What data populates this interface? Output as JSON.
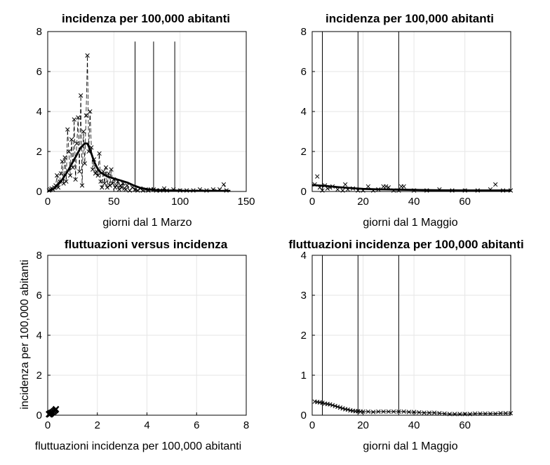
{
  "chart_data": [
    {
      "id": "p1",
      "type": "line",
      "title": "incidenza per 100,000 abitanti",
      "xlabel": "giorni dal 1 Marzo",
      "ylabel": "",
      "xlim": [
        0,
        150
      ],
      "ylim": [
        0,
        8
      ],
      "xticks": [
        0,
        50,
        100,
        150
      ],
      "yticks": [
        0,
        2,
        4,
        6,
        8
      ],
      "grid": true,
      "vlines": [
        66,
        80,
        96
      ],
      "vline_top": 7.5,
      "series": [
        {
          "style": "markers-x-dashed",
          "x": [
            1,
            2,
            3,
            4,
            5,
            6,
            7,
            8,
            9,
            10,
            11,
            12,
            13,
            14,
            15,
            16,
            17,
            18,
            19,
            20,
            21,
            22,
            23,
            24,
            25,
            26,
            27,
            28,
            29,
            30,
            31,
            32,
            33,
            34,
            35,
            36,
            37,
            38,
            39,
            40,
            41,
            42,
            43,
            44,
            45,
            46,
            47,
            48,
            49,
            50,
            51,
            52,
            53,
            54,
            55,
            56,
            57,
            58,
            59,
            60,
            62,
            64,
            66,
            68,
            70,
            72,
            74,
            76,
            78,
            80,
            82,
            85,
            88,
            90,
            95,
            100,
            105,
            110,
            115,
            120,
            125,
            130,
            133,
            135
          ],
          "y": [
            0.05,
            0.1,
            0.15,
            0.1,
            0.2,
            0.3,
            0.8,
            0.2,
            0.5,
            0.9,
            1.5,
            0.4,
            1.7,
            0.5,
            3.1,
            2.0,
            0.8,
            2.6,
            1.2,
            3.6,
            0.6,
            2.4,
            3.7,
            1.0,
            4.8,
            0.3,
            3.0,
            1.4,
            3.8,
            6.8,
            2.0,
            4.0,
            2.2,
            1.1,
            1.6,
            0.9,
            1.0,
            0.8,
            1.9,
            0.5,
            0.2,
            1.0,
            0.4,
            1.2,
            0.2,
            0.9,
            0.3,
            1.1,
            0.4,
            0.6,
            0.2,
            0.3,
            0.5,
            0.1,
            0.3,
            0.2,
            0.4,
            0.15,
            0.1,
            0.3,
            0.05,
            0.2,
            0.1,
            0.05,
            0.15,
            0.05,
            0.1,
            0.05,
            0.1,
            0.1,
            0.05,
            0.05,
            0.15,
            0.05,
            0.1,
            0.05,
            0.05,
            0.05,
            0.1,
            0.05,
            0.1,
            0.1,
            0.35,
            0.05
          ]
        },
        {
          "style": "thick-line",
          "x": [
            0,
            5,
            10,
            15,
            20,
            25,
            28,
            30,
            32,
            35,
            38,
            40,
            45,
            50,
            55,
            60,
            65,
            70,
            75,
            80,
            90,
            100,
            110,
            120,
            130,
            138
          ],
          "y": [
            0,
            0.15,
            0.5,
            1.0,
            1.6,
            2.2,
            2.4,
            2.4,
            2.1,
            1.5,
            1.1,
            0.95,
            0.75,
            0.65,
            0.55,
            0.45,
            0.3,
            0.18,
            0.12,
            0.08,
            0.05,
            0.04,
            0.03,
            0.03,
            0.03,
            0.03
          ]
        }
      ]
    },
    {
      "id": "p2",
      "type": "line",
      "title": "incidenza per 100,000 abitanti",
      "xlabel": "giorni dal 1 Maggio",
      "ylabel": "",
      "xlim": [
        0,
        78
      ],
      "ylim": [
        0,
        8
      ],
      "xticks": [
        0,
        20,
        40,
        60
      ],
      "yticks": [
        0,
        2,
        4,
        6,
        8
      ],
      "grid": true,
      "vlines": [
        4,
        18,
        34
      ],
      "vline_top": 8,
      "series": [
        {
          "style": "markers-x",
          "x": [
            1,
            2,
            3,
            4,
            5,
            6,
            7,
            8,
            10,
            12,
            13,
            14,
            16,
            18,
            20,
            22,
            24,
            26,
            28,
            29,
            30,
            32,
            34,
            35,
            36,
            40,
            45,
            50,
            55,
            60,
            65,
            70,
            72,
            75,
            78
          ],
          "y": [
            0.35,
            0.75,
            0.2,
            0.05,
            0.3,
            0.15,
            0.2,
            0.25,
            0.1,
            0.05,
            0.35,
            0.1,
            0.15,
            0.05,
            0.05,
            0.25,
            0.05,
            0.1,
            0.25,
            0.25,
            0.2,
            0.05,
            0.05,
            0.25,
            0.25,
            0.05,
            0.05,
            0.1,
            0.05,
            0.05,
            0.05,
            0.1,
            0.35,
            0.05,
            0.05
          ]
        },
        {
          "style": "thick-line",
          "x": [
            0,
            5,
            10,
            15,
            20,
            25,
            30,
            35,
            40,
            50,
            60,
            70,
            78
          ],
          "y": [
            0.32,
            0.28,
            0.22,
            0.17,
            0.13,
            0.11,
            0.1,
            0.09,
            0.08,
            0.06,
            0.05,
            0.05,
            0.05
          ]
        }
      ]
    },
    {
      "id": "p3",
      "type": "scatter",
      "title": "fluttuazioni versus incidenza",
      "xlabel": "fluttuazioni incidenza per 100,000 abitanti",
      "ylabel": "incidenza per 100,000 abitanti",
      "xlim": [
        0,
        8
      ],
      "ylim": [
        0,
        8
      ],
      "xticks": [
        0,
        2,
        4,
        6,
        8
      ],
      "yticks": [
        0,
        2,
        4,
        6,
        8
      ],
      "grid": true,
      "vlines": [],
      "series": [
        {
          "style": "markers-x-bold",
          "x": [
            0.05,
            0.1,
            0.15,
            0.2,
            0.25,
            0.3,
            0.33,
            0.12,
            0.08
          ],
          "y": [
            0.05,
            0.1,
            0.12,
            0.15,
            0.2,
            0.25,
            0.3,
            0.08,
            0.04
          ]
        }
      ]
    },
    {
      "id": "p4",
      "type": "line",
      "title": "fluttuazioni incidenza per 100,000 abitanti",
      "xlabel": "giorni dal 1 Maggio",
      "ylabel": "",
      "xlim": [
        0,
        78
      ],
      "ylim": [
        0,
        4
      ],
      "xticks": [
        0,
        20,
        40,
        60
      ],
      "yticks": [
        0,
        1,
        2,
        3,
        4
      ],
      "grid": true,
      "vlines": [
        4,
        18,
        34
      ],
      "vline_top": 4,
      "series": [
        {
          "style": "markers-x-line",
          "x": [
            1,
            2,
            3,
            4,
            5,
            6,
            7,
            8,
            9,
            10,
            11,
            12,
            13,
            14,
            15,
            16,
            17,
            18,
            19,
            20,
            22,
            24,
            26,
            28,
            30,
            32,
            34,
            36,
            38,
            40,
            42,
            44,
            46,
            48,
            50,
            52,
            54,
            56,
            58,
            60,
            62,
            64,
            66,
            68,
            70,
            72,
            74,
            76,
            78
          ],
          "y": [
            0.34,
            0.33,
            0.32,
            0.31,
            0.29,
            0.28,
            0.27,
            0.25,
            0.23,
            0.21,
            0.19,
            0.17,
            0.15,
            0.14,
            0.12,
            0.11,
            0.1,
            0.1,
            0.09,
            0.09,
            0.09,
            0.08,
            0.09,
            0.09,
            0.09,
            0.09,
            0.09,
            0.09,
            0.08,
            0.08,
            0.07,
            0.06,
            0.06,
            0.06,
            0.05,
            0.04,
            0.03,
            0.03,
            0.03,
            0.03,
            0.03,
            0.04,
            0.04,
            0.04,
            0.04,
            0.04,
            0.05,
            0.05,
            0.05
          ]
        }
      ]
    }
  ]
}
